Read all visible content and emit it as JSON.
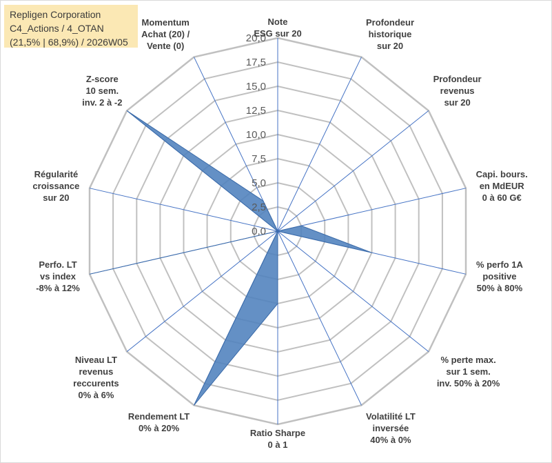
{
  "title_box": {
    "line1": "Repligen Corporation",
    "line2": "C4_Actions / 4_OTAN",
    "line3": "(21,5% | 68,9%) / 2026W05"
  },
  "colors": {
    "fill": "#4f81bd",
    "axis_line": "#4472c4",
    "grid": "#c0c0c0",
    "title_bg": "#fbe8b4"
  },
  "chart_data": {
    "type": "radar",
    "rmin": 0,
    "rmax": 20,
    "ticks": [
      "0,0",
      "2,5",
      "5,0",
      "7,5",
      "10,0",
      "12,5",
      "15,0",
      "17,5",
      "20,0"
    ],
    "axes": [
      {
        "lines": [
          "Note",
          "ESG sur 20"
        ],
        "value": 0
      },
      {
        "lines": [
          "Profondeur",
          "historique",
          "sur 20"
        ],
        "value": 0
      },
      {
        "lines": [
          "Profondeur",
          "revenus",
          "sur 20"
        ],
        "value": 0
      },
      {
        "lines": [
          "Capi. bours.",
          "en MdEUR",
          "0 à 60 G€"
        ],
        "value": 2.5
      },
      {
        "lines": [
          "% perfo 1A",
          "positive",
          "50% à 80%"
        ],
        "value": 10
      },
      {
        "lines": [
          "% perte max.",
          "sur 1 sem.",
          "inv. 50% à 20%"
        ],
        "value": 0
      },
      {
        "lines": [
          "Volatilité LT",
          "inversée",
          "40% à 0%"
        ],
        "value": 0
      },
      {
        "lines": [
          "Ratio Sharpe",
          "0 à 1"
        ],
        "value": 7.5
      },
      {
        "lines": [
          "Rendement LT",
          "0% à 20%"
        ],
        "value": 20
      },
      {
        "lines": [
          "Niveau LT",
          "revenus",
          "reccurents",
          "0% à 6%"
        ],
        "value": 0
      },
      {
        "lines": [
          "Perfo. LT",
          "vs index",
          "-8% à 12%"
        ],
        "value": 20
      },
      {
        "lines": [
          "Régularité",
          "croissance",
          "sur 20"
        ],
        "value": 0
      },
      {
        "lines": [
          "Z-score",
          "10 sem.",
          "inv. 2 à -2"
        ],
        "value": 20
      },
      {
        "lines": [
          "Momentum",
          "Achat (20) /",
          "Vente (0)"
        ],
        "value": 3.5
      }
    ]
  }
}
